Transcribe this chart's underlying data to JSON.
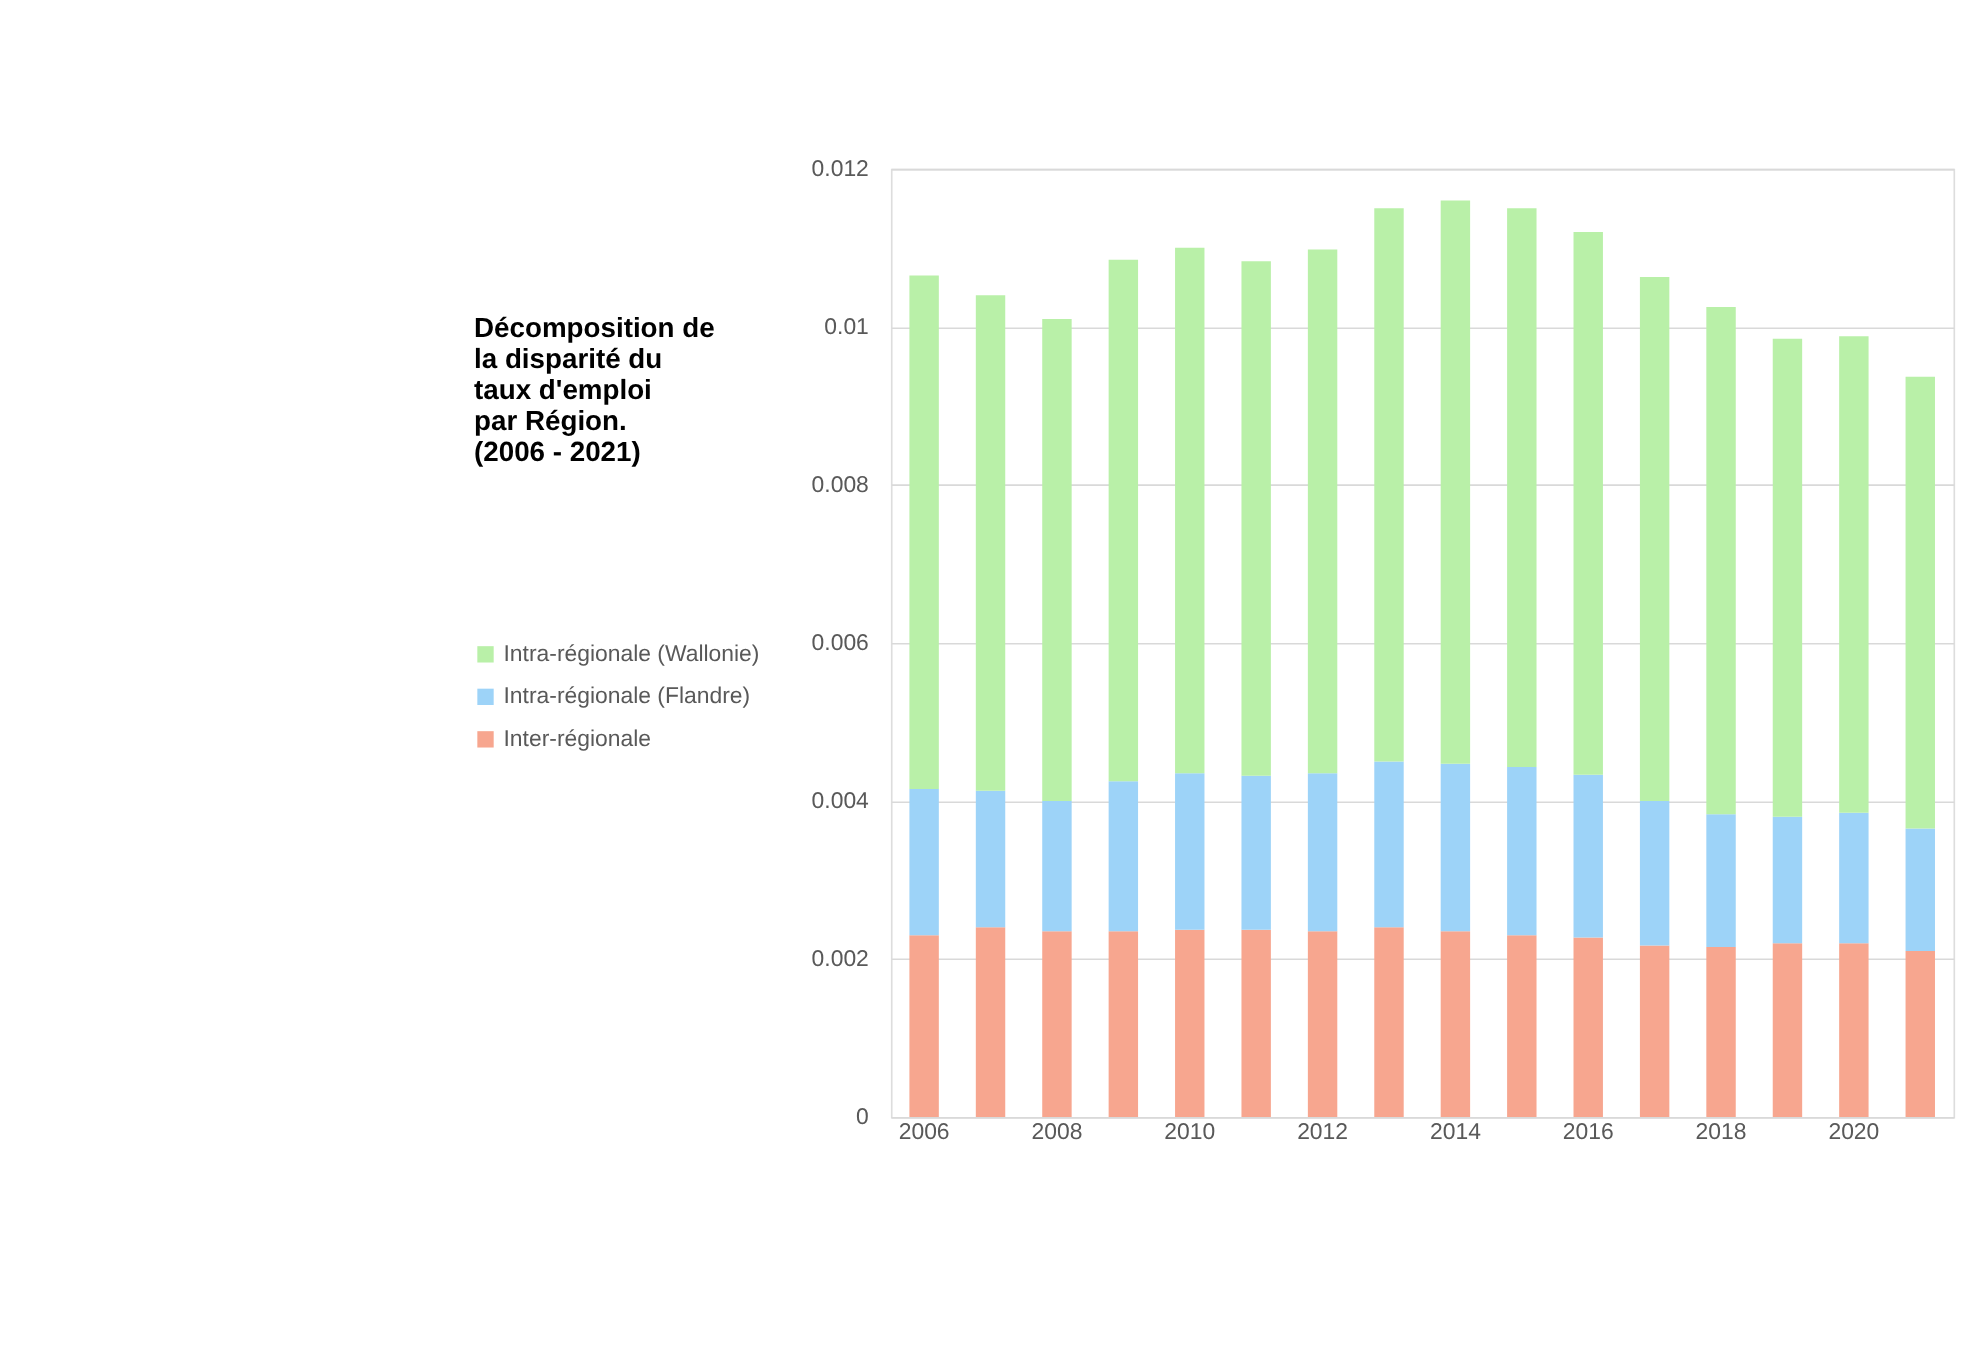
{
  "chart_data": {
    "type": "bar",
    "stacked": true,
    "title": "Décomposition de la disparité du taux d'emploi par Région. (2006 - 2021)",
    "categories": [
      "2006",
      null,
      "2008",
      null,
      "2010",
      null,
      "2012",
      null,
      "2014",
      null,
      "2016",
      null,
      "2018",
      null,
      "2020",
      null
    ],
    "series": [
      {
        "name": "Inter-régionale",
        "color": "#f7a68f",
        "values": [
          0.0023,
          0.0024,
          0.00235,
          0.00235,
          0.00237,
          0.00237,
          0.00235,
          0.0024,
          0.00235,
          0.0023,
          0.00227,
          0.00217,
          0.00215,
          0.0022,
          0.0022,
          0.0021
        ]
      },
      {
        "name": "Intra-régionale (Flandre)",
        "color": "#9dd3f8",
        "values": [
          0.00185,
          0.00173,
          0.00165,
          0.0019,
          0.00198,
          0.00195,
          0.002,
          0.0021,
          0.00212,
          0.00213,
          0.00206,
          0.00183,
          0.00168,
          0.0016,
          0.00165,
          0.00155
        ]
      },
      {
        "name": "Intra-régionale (Wallonie)",
        "color": "#b9f0a8",
        "values": [
          0.0065,
          0.00627,
          0.0061,
          0.0066,
          0.00665,
          0.00651,
          0.00663,
          0.007,
          0.00713,
          0.00707,
          0.00687,
          0.00663,
          0.00642,
          0.00605,
          0.00603,
          0.00572
        ]
      }
    ],
    "ylim": [
      0,
      0.012
    ],
    "yticks": [
      0,
      0.002,
      0.004,
      0.006,
      0.008,
      0.01,
      0.012
    ],
    "grid": "y",
    "legend": "left"
  }
}
